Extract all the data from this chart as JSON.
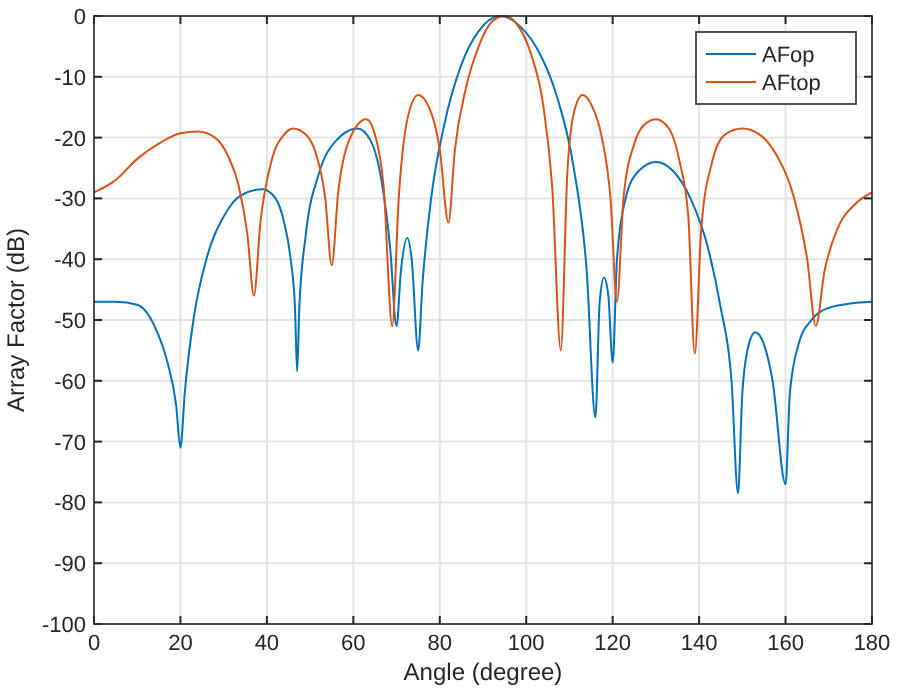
{
  "chart_data": {
    "type": "line",
    "xlabel": "Angle (degree)",
    "ylabel": "Array Factor (dB)",
    "xlim": [
      0,
      180
    ],
    "xticks": [
      0,
      20,
      40,
      60,
      80,
      100,
      120,
      140,
      160,
      180
    ],
    "ylim": [
      -100,
      0
    ],
    "yticks": [
      -100,
      -90,
      -80,
      -70,
      -60,
      -50,
      -40,
      -30,
      -20,
      -10,
      0
    ],
    "grid": true,
    "legend": "top right",
    "marker": "none",
    "line_style": "solid",
    "series": [
      {
        "name": "AFop",
        "color": "#0072bd",
        "x": [
          0,
          5,
          10,
          14,
          17,
          19,
          20,
          21,
          23,
          26,
          30,
          34,
          39,
          42,
          44,
          45.5,
          46.5,
          47,
          47.5,
          49,
          52,
          56,
          61,
          64,
          66.5,
          68.5,
          70,
          71,
          72.5,
          73.5,
          75,
          76,
          78,
          81,
          85,
          89,
          94,
          99,
          103,
          107,
          111,
          114,
          116,
          117,
          118,
          119,
          120,
          121,
          123,
          126,
          130,
          134,
          138,
          142,
          145,
          147.5,
          149,
          150,
          151.5,
          153,
          155,
          157,
          160,
          161,
          163,
          166,
          170,
          175,
          180
        ],
        "values": [
          -47,
          -47,
          -47.5,
          -51,
          -57,
          -64,
          -71,
          -62,
          -50,
          -40,
          -33,
          -29.5,
          -28.5,
          -30,
          -34,
          -40,
          -48,
          -58.5,
          -48,
          -36,
          -26,
          -20.5,
          -18.5,
          -20.5,
          -27,
          -38,
          -51,
          -42,
          -36.5,
          -40,
          -55,
          -44,
          -30,
          -18,
          -8,
          -2.5,
          0,
          -2,
          -6,
          -13,
          -25,
          -42,
          -66,
          -47,
          -43,
          -46,
          -57,
          -40,
          -30,
          -25.5,
          -24,
          -25.5,
          -30,
          -38,
          -48,
          -60,
          -78.5,
          -62,
          -54,
          -52,
          -54,
          -60,
          -77,
          -62,
          -54,
          -50,
          -48,
          -47.3,
          -47
        ]
      },
      {
        "name": "AFtop",
        "color": "#d95319",
        "x": [
          0,
          5,
          10,
          15,
          20,
          24,
          28,
          31,
          33.5,
          35.5,
          37,
          38.5,
          41,
          44,
          46,
          49,
          51.5,
          53.5,
          55,
          56.5,
          59,
          63,
          65,
          67,
          69,
          70.5,
          72.5,
          75,
          77.5,
          80,
          82,
          83.5,
          86,
          89,
          92,
          95,
          98,
          101,
          104,
          106,
          108,
          109.5,
          111,
          113,
          115,
          117.5,
          119.5,
          121,
          122.5,
          125,
          128,
          130,
          133,
          135.5,
          137.5,
          139,
          140.5,
          143,
          146,
          150,
          154,
          158,
          162,
          165,
          167,
          169,
          172,
          176,
          180
        ],
        "values": [
          -29,
          -27,
          -23.5,
          -21,
          -19.3,
          -19,
          -20,
          -23,
          -28,
          -36,
          -46,
          -34,
          -24,
          -19.5,
          -18.5,
          -19.5,
          -23,
          -30,
          -41,
          -29,
          -20.5,
          -17,
          -19.5,
          -28,
          -51,
          -30,
          -17,
          -13,
          -15,
          -22,
          -34,
          -22,
          -12,
          -5,
          -1,
          0,
          -1.5,
          -6,
          -15,
          -28,
          -55,
          -26,
          -16,
          -13,
          -14.5,
          -20,
          -30,
          -47,
          -30,
          -21,
          -17.5,
          -17,
          -18.5,
          -24,
          -33,
          -55.5,
          -35,
          -24,
          -19.5,
          -18.5,
          -19.5,
          -23,
          -30,
          -40,
          -51,
          -42,
          -35,
          -31,
          -29
        ]
      }
    ]
  }
}
